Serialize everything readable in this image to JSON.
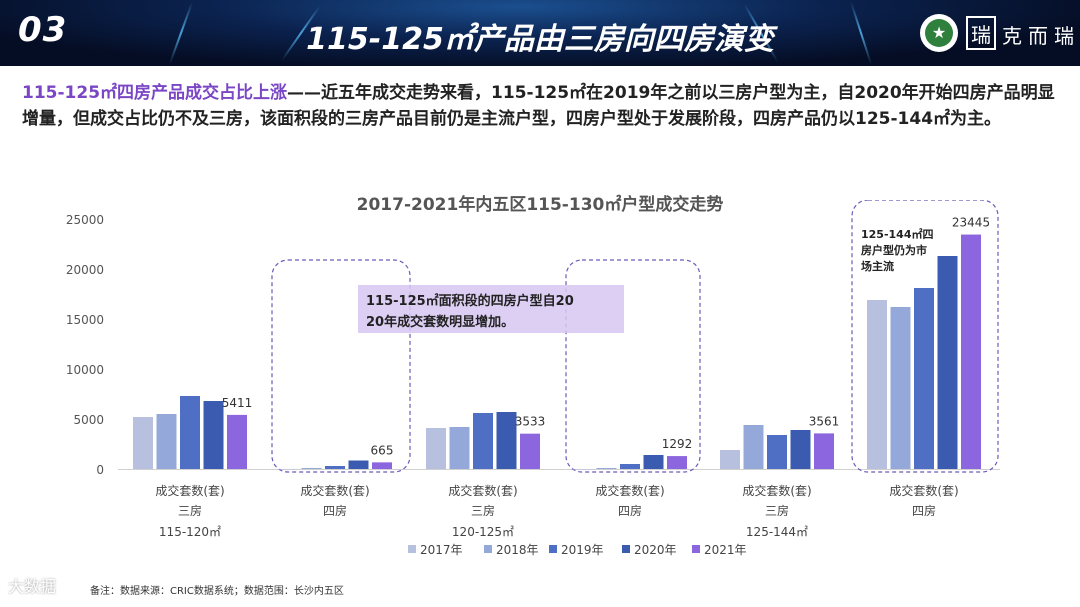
{
  "header": {
    "section_number": "03",
    "title": "115-125㎡产品由三房向四房演变",
    "logo_text": "克而瑞"
  },
  "intro": {
    "lead": "115-125㎡四房产品成交占比上涨",
    "body": "——近五年成交走势来看，115-125㎡在2019年之前以三房户型为主，自2020年开始四房产品明显增量，但成交占比仍不及三房，该面积段的三房产品目前仍是主流户型，四房户型处于发展阶段，四房产品仍以125-144㎡为主。"
  },
  "source": "备注：数据来源：CRIC数据系统；数据范围：长沙内五区",
  "watermark": "大数据",
  "chart_data": {
    "type": "bar",
    "title": "2017-2021年内五区115-130㎡户型成交走势",
    "ylim": [
      0,
      25000
    ],
    "yticks": [
      0,
      5000,
      10000,
      15000,
      20000,
      25000
    ],
    "grid": false,
    "legend_position": "bottom",
    "groups": [
      {
        "metric": "成交套数(套)",
        "rooms": "三房",
        "area": "115-120㎡"
      },
      {
        "metric": "成交套数(套)",
        "rooms": "四房",
        "area": ""
      },
      {
        "metric": "成交套数(套)",
        "rooms": "三房",
        "area": "120-125㎡"
      },
      {
        "metric": "成交套数(套)",
        "rooms": "四房",
        "area": ""
      },
      {
        "metric": "成交套数(套)",
        "rooms": "三房",
        "area": "125-144㎡"
      },
      {
        "metric": "成交套数(套)",
        "rooms": "四房",
        "area": ""
      }
    ],
    "series": [
      {
        "name": "2017年",
        "color": "#b7c1df",
        "values": [
          5200,
          0,
          4100,
          0,
          1900,
          16900
        ]
      },
      {
        "name": "2018年",
        "color": "#95a8da",
        "values": [
          5500,
          100,
          4200,
          100,
          4400,
          16200
        ]
      },
      {
        "name": "2019年",
        "color": "#4f6fc4",
        "values": [
          7300,
          300,
          5600,
          500,
          3400,
          18100
        ]
      },
      {
        "name": "2020年",
        "color": "#3a5bb0",
        "values": [
          6800,
          850,
          5700,
          1400,
          3900,
          21300
        ]
      },
      {
        "name": "2021年",
        "color": "#8b66df",
        "values": [
          5411,
          665,
          3533,
          1292,
          3561,
          23445
        ]
      }
    ],
    "data_labels": [
      "5411",
      "665",
      "3533",
      "1292",
      "3561",
      "23445"
    ],
    "annotations": [
      {
        "text": "115-125㎡面积段的四房户型自2020年成交套数明显增加。"
      },
      {
        "text": "125-144㎡四房户型仍为市场主流"
      }
    ]
  }
}
